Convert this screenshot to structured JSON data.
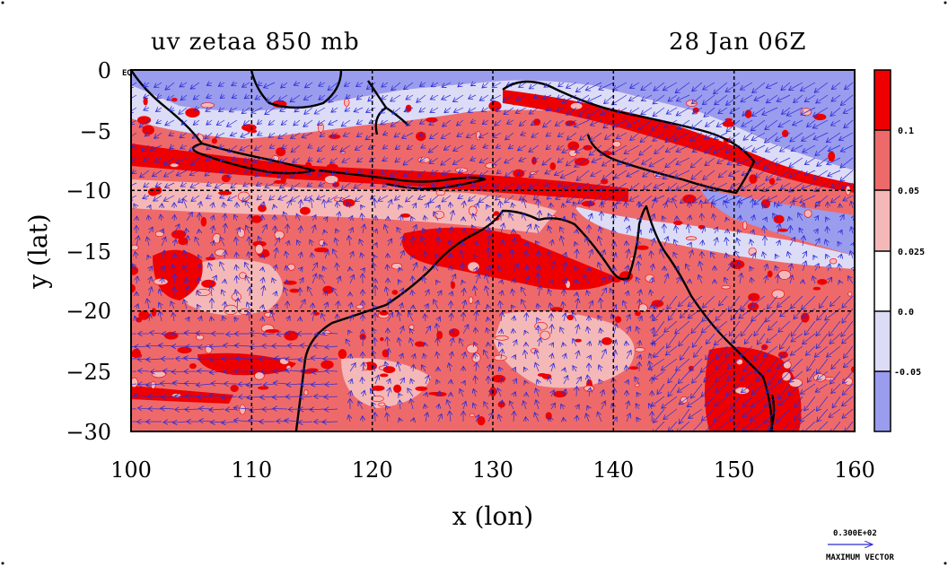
{
  "chart_data": {
    "type": "heatmap",
    "title": "uv zetaa 850 mb",
    "date_label": "28 Jan 06Z",
    "xlabel": "x (lon)",
    "ylabel": "y (lat)",
    "xlim": [
      100,
      160
    ],
    "ylim": [
      -30,
      0
    ],
    "x_ticks": [
      "100",
      "110",
      "120",
      "130",
      "140",
      "150",
      "160"
    ],
    "y_ticks": [
      "0",
      "−5",
      "−10",
      "−15",
      "−20",
      "−25",
      "−30"
    ],
    "grid": true,
    "field": "absolute vorticity (zetaa) shaded, wind vectors (uv)",
    "colorbar": {
      "levels": [
        "0.1",
        "0.05",
        "0.025",
        "0.0",
        "-0.05"
      ],
      "colors": [
        "#ee0000",
        "#ee6a6a",
        "#f5b8b8",
        "#ffffff",
        "#dcdcf7",
        "#9a9cee"
      ]
    },
    "vector_legend": {
      "value": "0.300E+02",
      "label": "MAXIMUM VECTOR"
    },
    "corner_label": "EQ"
  }
}
